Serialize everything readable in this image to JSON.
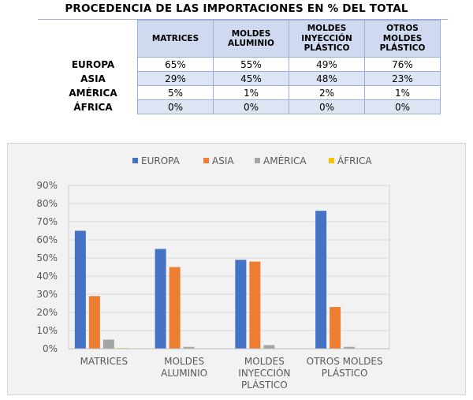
{
  "title": "PROCEDENCIA DE LAS IMPORTACIONES EN % DEL TOTAL",
  "table": {
    "columns": [
      [
        "MATRICES"
      ],
      [
        "MOLDES",
        "ALUMINIO"
      ],
      [
        "MOLDES",
        "INYECCIÓN",
        "PLÁSTICO"
      ],
      [
        "OTROS",
        "MOLDES",
        "PLÁSTICO"
      ]
    ],
    "rows": [
      {
        "label": "EUROPA",
        "cells": [
          "65%",
          "55%",
          "49%",
          "76%"
        ]
      },
      {
        "label": "ASIA",
        "cells": [
          "29%",
          "45%",
          "48%",
          "23%"
        ]
      },
      {
        "label": "AMÉRICA",
        "cells": [
          "5%",
          "1%",
          "2%",
          "1%"
        ]
      },
      {
        "label": "ÁFRICA",
        "cells": [
          "0%",
          "0%",
          "0%",
          "0%"
        ]
      }
    ]
  },
  "chart_data": {
    "type": "bar",
    "categories": [
      [
        "MATRICES"
      ],
      [
        "MOLDES",
        "ALUMINIO"
      ],
      [
        "MOLDES",
        "INYECCIÓN",
        "PLÁSTICO"
      ],
      [
        "OTROS MOLDES",
        "PLÁSTICO"
      ]
    ],
    "series": [
      {
        "name": "EUROPA",
        "color": "#4472c4",
        "values": [
          65,
          55,
          49,
          76
        ]
      },
      {
        "name": "ASIA",
        "color": "#ed7d31",
        "values": [
          29,
          45,
          48,
          23
        ]
      },
      {
        "name": "AMÉRICA",
        "color": "#a5a5a5",
        "values": [
          5,
          1,
          2,
          1
        ]
      },
      {
        "name": "ÁFRICA",
        "color": "#ffc000",
        "values": [
          0.4,
          0,
          0,
          0
        ]
      }
    ],
    "ylim": [
      0,
      90
    ],
    "yticks": [
      "0%",
      "10%",
      "20%",
      "30%",
      "40%",
      "50%",
      "60%",
      "70%",
      "80%",
      "90%"
    ],
    "legend": "top",
    "grid": true
  }
}
